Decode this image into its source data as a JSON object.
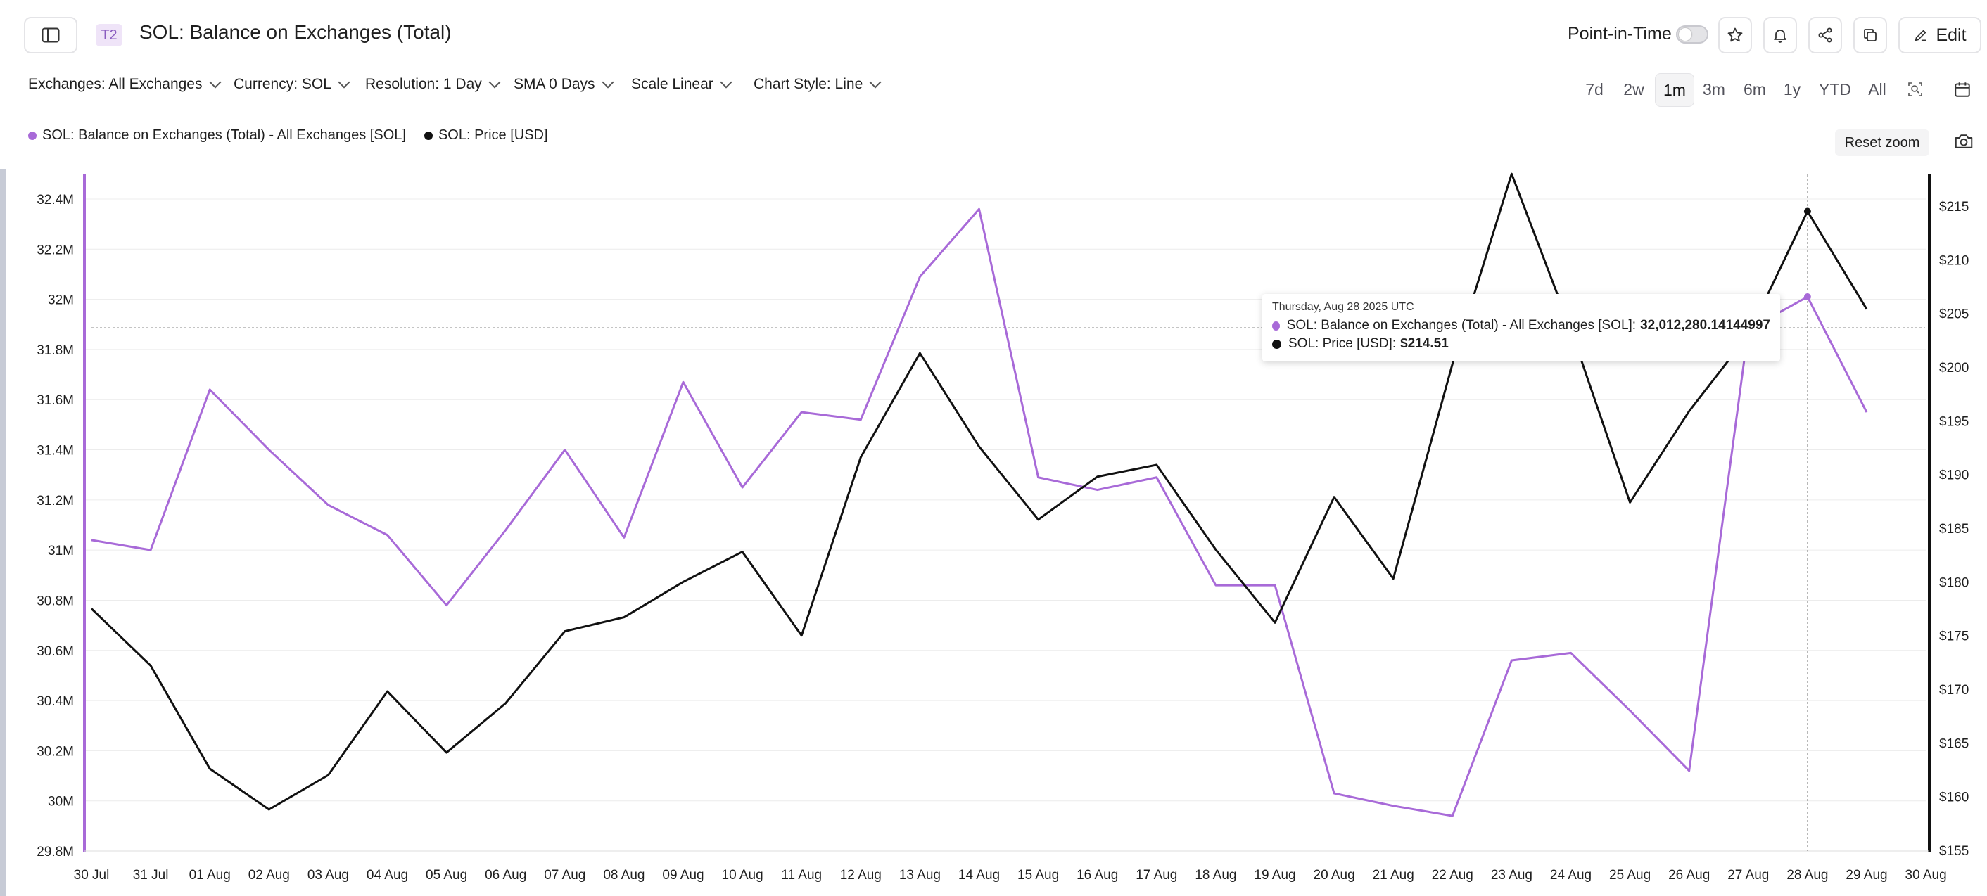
{
  "header": {
    "tag": "T2",
    "title": "SOL: Balance on Exchanges (Total)",
    "point_in_time_label": "Point-in-Time",
    "edit_label": "Edit"
  },
  "filters": [
    {
      "label": "Exchanges: All Exchanges"
    },
    {
      "label": "Currency: SOL"
    },
    {
      "label": "Resolution: 1 Day"
    },
    {
      "label": "SMA 0 Days"
    },
    {
      "label": "Scale Linear"
    },
    {
      "label": "Chart Style: Line"
    }
  ],
  "ranges": [
    {
      "label": "7d",
      "active": false
    },
    {
      "label": "2w",
      "active": false
    },
    {
      "label": "1m",
      "active": true
    },
    {
      "label": "3m",
      "active": false
    },
    {
      "label": "6m",
      "active": false
    },
    {
      "label": "1y",
      "active": false
    },
    {
      "label": "YTD",
      "active": false
    },
    {
      "label": "All",
      "active": false
    }
  ],
  "reset_zoom_label": "Reset zoom",
  "colors": {
    "balance": "#a86ad8",
    "price": "#111111",
    "grid": "#ececec",
    "accent": "#8a5cc0"
  },
  "tooltip": {
    "date": "Thursday, Aug 28 2025 UTC",
    "balance_label": "SOL: Balance on Exchanges (Total) - All Exchanges [SOL]:",
    "balance_value": "32,012,280.14144997",
    "price_label": "SOL: Price [USD]:",
    "price_value": "$214.51"
  },
  "chart_data": {
    "type": "line",
    "x": [
      "30 Jul",
      "31 Jul",
      "01 Aug",
      "02 Aug",
      "03 Aug",
      "04 Aug",
      "05 Aug",
      "06 Aug",
      "07 Aug",
      "08 Aug",
      "09 Aug",
      "10 Aug",
      "11 Aug",
      "12 Aug",
      "13 Aug",
      "14 Aug",
      "15 Aug",
      "16 Aug",
      "17 Aug",
      "18 Aug",
      "19 Aug",
      "20 Aug",
      "21 Aug",
      "22 Aug",
      "23 Aug",
      "24 Aug",
      "25 Aug",
      "26 Aug",
      "27 Aug",
      "28 Aug",
      "29 Aug"
    ],
    "x_tick_labels": [
      "30 Jul",
      "31 Jul",
      "01 Aug",
      "02 Aug",
      "03 Aug",
      "04 Aug",
      "05 Aug",
      "06 Aug",
      "07 Aug",
      "08 Aug",
      "09 Aug",
      "10 Aug",
      "11 Aug",
      "12 Aug",
      "13 Aug",
      "14 Aug",
      "15 Aug",
      "16 Aug",
      "17 Aug",
      "18 Aug",
      "19 Aug",
      "20 Aug",
      "21 Aug",
      "22 Aug",
      "23 Aug",
      "24 Aug",
      "25 Aug",
      "26 Aug",
      "27 Aug",
      "28 Aug",
      "29 Aug",
      "30 Aug"
    ],
    "series": [
      {
        "name": "SOL: Balance on Exchanges (Total) - All Exchanges [SOL]",
        "axis": "left",
        "values": [
          31.04,
          31.0,
          31.64,
          31.4,
          31.18,
          31.06,
          30.78,
          31.08,
          31.4,
          31.05,
          31.67,
          31.25,
          31.55,
          31.52,
          32.09,
          32.36,
          31.29,
          31.24,
          31.29,
          30.86,
          30.86,
          30.03,
          29.98,
          29.94,
          30.56,
          30.59,
          30.36,
          30.12,
          31.88,
          32.01,
          31.55
        ]
      },
      {
        "name": "SOL: Price [USD]",
        "axis": "right",
        "values": [
          177.5,
          172.2,
          162.6,
          158.8,
          162.0,
          169.8,
          164.1,
          168.7,
          175.4,
          176.7,
          180.0,
          182.8,
          175.0,
          191.6,
          201.3,
          192.6,
          185.8,
          189.8,
          190.9,
          183.0,
          176.2,
          187.9,
          180.3,
          200.3,
          218.0,
          203.5,
          187.4,
          195.9,
          203.0,
          214.51,
          205.4
        ]
      }
    ],
    "y_left": {
      "min": 29.8,
      "max": 32.4,
      "unit": "M",
      "ticks": [
        "29.8M",
        "30M",
        "30.2M",
        "30.4M",
        "30.6M",
        "30.8M",
        "31M",
        "31.2M",
        "31.4M",
        "31.6M",
        "31.8M",
        "32M",
        "32.2M",
        "32.4M"
      ]
    },
    "y_right": {
      "min": 155,
      "max": 215,
      "ticks": [
        "$155",
        "$160",
        "$165",
        "$170",
        "$175",
        "$180",
        "$185",
        "$190",
        "$195",
        "$200",
        "$205",
        "$210",
        "$215"
      ]
    },
    "grid": true,
    "legend_position": "top-left",
    "highlight_index": 29
  }
}
